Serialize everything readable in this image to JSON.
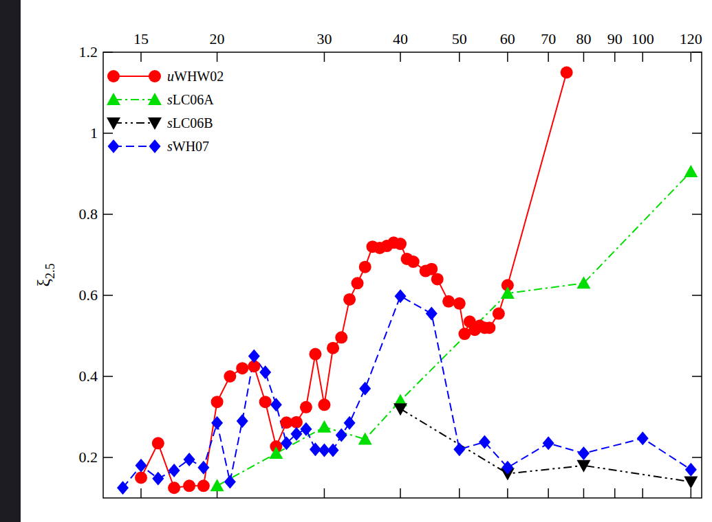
{
  "chart_data": {
    "type": "line",
    "y_label": "ξ2.5",
    "log": "x",
    "legend": "upper left",
    "grid": false,
    "xlim": [
      13,
      125
    ],
    "xticks": [
      15,
      20,
      30,
      40,
      50,
      60,
      70,
      80,
      90,
      100,
      120
    ],
    "ylim": [
      0.1,
      1.2
    ],
    "yticks": [
      0.2,
      0.4,
      0.6,
      0.8,
      1,
      1.2
    ],
    "series": [
      {
        "name": "uWHW02",
        "color": "#ff0000",
        "marker": "circle",
        "line_style": "solid",
        "x": [
          15,
          16,
          17,
          18,
          19,
          20,
          21,
          22,
          23,
          24,
          25,
          26,
          27,
          28,
          29,
          30,
          31,
          32,
          33,
          34,
          35,
          36,
          37,
          38,
          39,
          40,
          41,
          42,
          44,
          45,
          46,
          48,
          50,
          51,
          52,
          53,
          54,
          55,
          56,
          58,
          60,
          75
        ],
        "values": [
          0.15,
          0.235,
          0.125,
          0.13,
          0.13,
          0.337,
          0.4,
          0.42,
          0.425,
          0.337,
          0.227,
          0.286,
          0.287,
          0.324,
          0.455,
          0.33,
          0.47,
          0.496,
          0.59,
          0.63,
          0.67,
          0.72,
          0.717,
          0.722,
          0.73,
          0.727,
          0.69,
          0.683,
          0.66,
          0.665,
          0.64,
          0.585,
          0.58,
          0.505,
          0.535,
          0.515,
          0.525,
          0.52,
          0.52,
          0.555,
          0.625,
          1.15
        ]
      },
      {
        "name": "sLC06A",
        "color": "#00dd00",
        "marker": "triangle-up",
        "line_style": "dashdot",
        "x": [
          20,
          25,
          30,
          35,
          40,
          60,
          80,
          120
        ],
        "values": [
          0.13,
          0.21,
          0.275,
          0.245,
          0.34,
          0.605,
          0.63,
          0.905
        ]
      },
      {
        "name": "sLC06B",
        "color": "#000000",
        "marker": "triangle-down",
        "line_style": "dashdotdot",
        "x": [
          40,
          60,
          80,
          120
        ],
        "values": [
          0.32,
          0.16,
          0.18,
          0.14
        ]
      },
      {
        "name": "sWH07",
        "color": "#0000ff",
        "marker": "diamond",
        "line_style": "dashed",
        "x": [
          14,
          15,
          16,
          17,
          18,
          19,
          20,
          21,
          22,
          23,
          24,
          25,
          26,
          27,
          28,
          29,
          30,
          31,
          32,
          33,
          35,
          40,
          45,
          50,
          55,
          60,
          70,
          80,
          100,
          120
        ],
        "values": [
          0.125,
          0.18,
          0.148,
          0.168,
          0.195,
          0.175,
          0.285,
          0.14,
          0.29,
          0.45,
          0.41,
          0.33,
          0.235,
          0.258,
          0.27,
          0.22,
          0.218,
          0.218,
          0.255,
          0.285,
          0.37,
          0.598,
          0.555,
          0.22,
          0.238,
          0.175,
          0.235,
          0.21,
          0.247,
          0.17
        ]
      }
    ]
  }
}
